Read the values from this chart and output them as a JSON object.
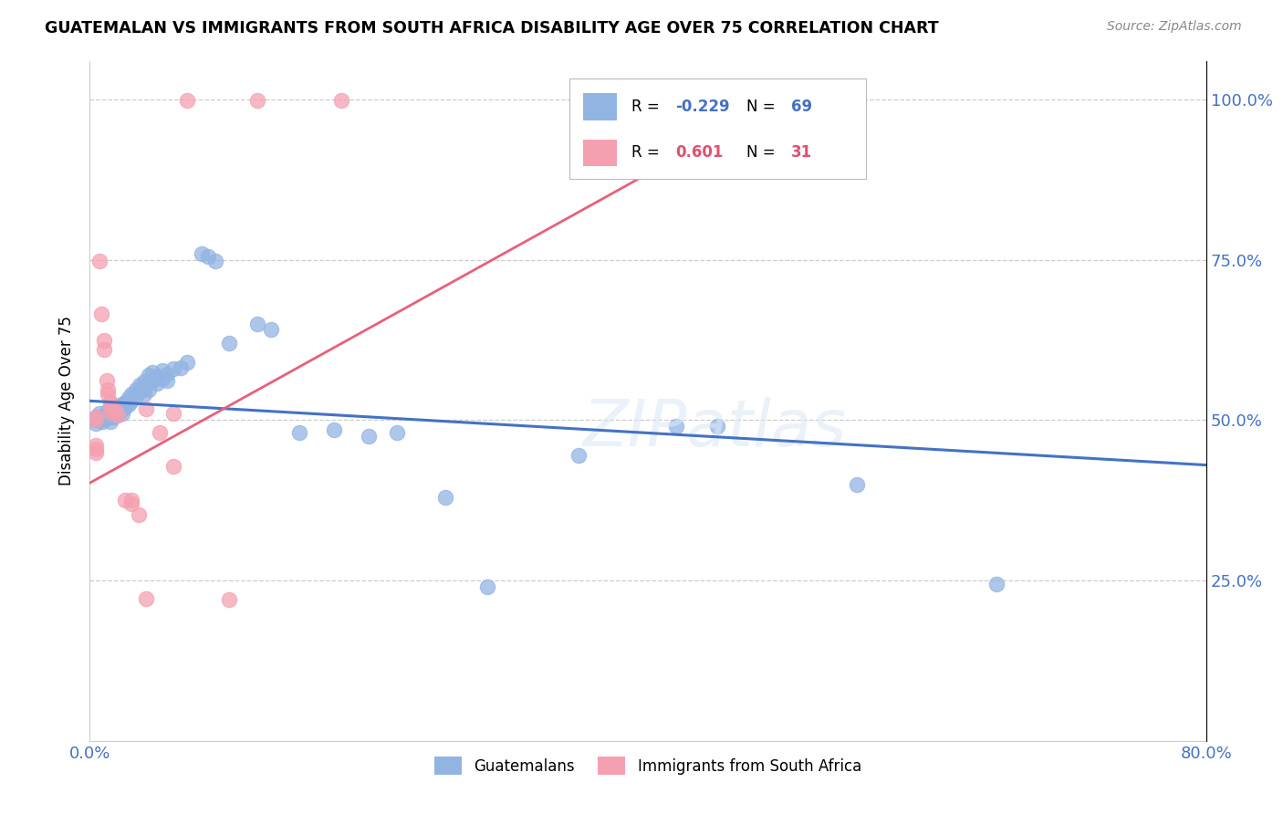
{
  "title": "GUATEMALAN VS IMMIGRANTS FROM SOUTH AFRICA DISABILITY AGE OVER 75 CORRELATION CHART",
  "source": "Source: ZipAtlas.com",
  "ylabel": "Disability Age Over 75",
  "legend_guatemalans": "Guatemalans",
  "legend_south_africa": "Immigrants from South Africa",
  "r_guatemalan": "-0.229",
  "n_guatemalan": "69",
  "r_south_africa": "0.601",
  "n_south_africa": "31",
  "blue_color": "#92b4e3",
  "pink_color": "#f4a0b0",
  "blue_line_color": "#4472c4",
  "pink_line_color": "#e8607a",
  "blue_text_color": "#4472c4",
  "pink_text_color": "#e05070",
  "guatemalan_points": [
    [
      0.004,
      0.5
    ],
    [
      0.004,
      0.505
    ],
    [
      0.004,
      0.495
    ],
    [
      0.007,
      0.51
    ],
    [
      0.007,
      0.5
    ],
    [
      0.009,
      0.505
    ],
    [
      0.009,
      0.498
    ],
    [
      0.011,
      0.508
    ],
    [
      0.011,
      0.502
    ],
    [
      0.013,
      0.515
    ],
    [
      0.013,
      0.505
    ],
    [
      0.015,
      0.512
    ],
    [
      0.015,
      0.505
    ],
    [
      0.015,
      0.498
    ],
    [
      0.017,
      0.518
    ],
    [
      0.017,
      0.51
    ],
    [
      0.017,
      0.505
    ],
    [
      0.019,
      0.522
    ],
    [
      0.019,
      0.515
    ],
    [
      0.019,
      0.508
    ],
    [
      0.021,
      0.52
    ],
    [
      0.021,
      0.512
    ],
    [
      0.023,
      0.525
    ],
    [
      0.023,
      0.518
    ],
    [
      0.023,
      0.51
    ],
    [
      0.025,
      0.528
    ],
    [
      0.025,
      0.52
    ],
    [
      0.028,
      0.535
    ],
    [
      0.028,
      0.525
    ],
    [
      0.03,
      0.54
    ],
    [
      0.03,
      0.53
    ],
    [
      0.033,
      0.548
    ],
    [
      0.033,
      0.538
    ],
    [
      0.036,
      0.555
    ],
    [
      0.036,
      0.545
    ],
    [
      0.039,
      0.56
    ],
    [
      0.039,
      0.55
    ],
    [
      0.039,
      0.54
    ],
    [
      0.042,
      0.57
    ],
    [
      0.042,
      0.558
    ],
    [
      0.042,
      0.548
    ],
    [
      0.045,
      0.575
    ],
    [
      0.045,
      0.562
    ],
    [
      0.048,
      0.568
    ],
    [
      0.048,
      0.558
    ],
    [
      0.052,
      0.578
    ],
    [
      0.052,
      0.565
    ],
    [
      0.055,
      0.572
    ],
    [
      0.055,
      0.562
    ],
    [
      0.06,
      0.58
    ],
    [
      0.065,
      0.582
    ],
    [
      0.07,
      0.59
    ],
    [
      0.08,
      0.76
    ],
    [
      0.085,
      0.755
    ],
    [
      0.09,
      0.748
    ],
    [
      0.1,
      0.62
    ],
    [
      0.12,
      0.65
    ],
    [
      0.13,
      0.642
    ],
    [
      0.15,
      0.48
    ],
    [
      0.175,
      0.485
    ],
    [
      0.2,
      0.475
    ],
    [
      0.22,
      0.48
    ],
    [
      0.255,
      0.38
    ],
    [
      0.285,
      0.24
    ],
    [
      0.35,
      0.445
    ],
    [
      0.42,
      0.49
    ],
    [
      0.45,
      0.49
    ],
    [
      0.55,
      0.4
    ],
    [
      0.65,
      0.245
    ]
  ],
  "south_africa_points": [
    [
      0.004,
      0.505
    ],
    [
      0.004,
      0.5
    ],
    [
      0.004,
      0.46
    ],
    [
      0.004,
      0.455
    ],
    [
      0.004,
      0.45
    ],
    [
      0.007,
      0.748
    ],
    [
      0.008,
      0.665
    ],
    [
      0.01,
      0.625
    ],
    [
      0.01,
      0.61
    ],
    [
      0.012,
      0.562
    ],
    [
      0.013,
      0.548
    ],
    [
      0.013,
      0.54
    ],
    [
      0.015,
      0.528
    ],
    [
      0.015,
      0.52
    ],
    [
      0.015,
      0.512
    ],
    [
      0.018,
      0.515
    ],
    [
      0.02,
      0.508
    ],
    [
      0.025,
      0.375
    ],
    [
      0.03,
      0.375
    ],
    [
      0.03,
      0.37
    ],
    [
      0.035,
      0.352
    ],
    [
      0.04,
      0.222
    ],
    [
      0.05,
      0.48
    ],
    [
      0.06,
      0.428
    ],
    [
      0.07,
      0.998
    ],
    [
      0.1,
      0.22
    ],
    [
      0.12,
      0.998
    ],
    [
      0.18,
      0.998
    ],
    [
      0.45,
      0.998
    ],
    [
      0.04,
      0.518
    ],
    [
      0.06,
      0.51
    ]
  ],
  "xmin": 0.0,
  "xmax": 0.8,
  "ymin": 0.0,
  "ymax": 1.06,
  "blue_trend_x": [
    0.0,
    0.8
  ],
  "blue_trend_y": [
    0.53,
    0.43
  ],
  "pink_trend_x": [
    -0.01,
    0.5
  ],
  "pink_trend_y": [
    0.39,
    1.005
  ]
}
